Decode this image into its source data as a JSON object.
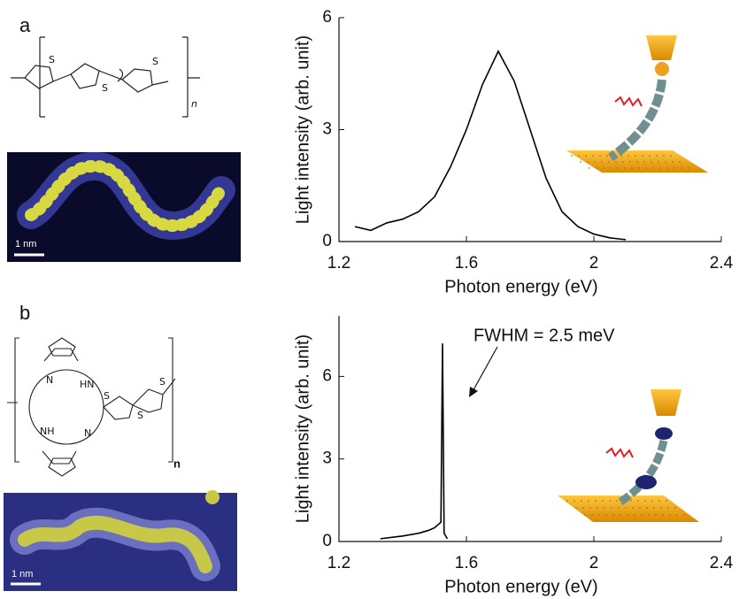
{
  "panels": [
    {
      "label": "a",
      "structure": {
        "atoms": [
          "S",
          "S",
          "S"
        ],
        "repeat": "n"
      },
      "scale_bar": "1 nm"
    },
    {
      "label": "b",
      "structure": {
        "atoms": [
          "N",
          "HN",
          "NH",
          "N",
          "S",
          "S",
          "S"
        ],
        "repeat": "n"
      },
      "scale_bar": "1 nm"
    }
  ],
  "chart_data": [
    {
      "type": "line",
      "x_label": "Photon energy (eV)",
      "y_label": "Light intensity (arb. unit)",
      "color": "#000000",
      "x": [
        1.25,
        1.3,
        1.35,
        1.4,
        1.45,
        1.5,
        1.55,
        1.6,
        1.65,
        1.7,
        1.75,
        1.8,
        1.85,
        1.9,
        1.95,
        2.0,
        2.05,
        2.1
      ],
      "values": [
        0.4,
        0.3,
        0.5,
        0.6,
        0.8,
        1.2,
        2.0,
        3.0,
        4.2,
        5.1,
        4.3,
        3.0,
        1.7,
        0.8,
        0.4,
        0.2,
        0.1,
        0.05
      ],
      "xlim": [
        1.2,
        2.4
      ],
      "xticks": [
        1.2,
        1.6,
        2,
        2.4
      ],
      "ylim": [
        0,
        6
      ],
      "yticks": [
        0,
        3,
        6
      ]
    },
    {
      "type": "line",
      "x_label": "Photon energy (eV)",
      "y_label": "Light intensity (arb. unit)",
      "color": "#000000",
      "annotation": "FWHM = 2.5 meV",
      "x": [
        1.33,
        1.4,
        1.45,
        1.48,
        1.5,
        1.52,
        1.525,
        1.53,
        1.54
      ],
      "values": [
        0.1,
        0.2,
        0.3,
        0.4,
        0.5,
        0.7,
        7.2,
        0.3,
        0.1
      ],
      "xlim": [
        1.2,
        2.4
      ],
      "xticks": [
        1.2,
        1.6,
        2,
        2.4
      ],
      "ylim": [
        0,
        8.2
      ],
      "yticks": [
        0,
        3,
        6
      ]
    }
  ]
}
